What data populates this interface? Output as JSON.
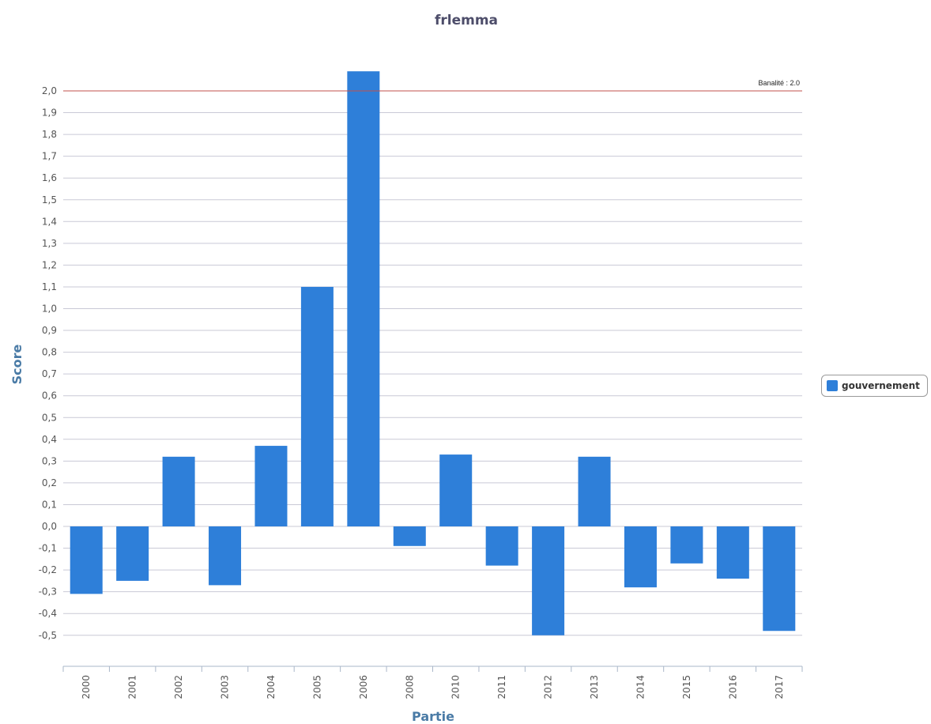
{
  "chart_data": {
    "type": "bar",
    "title": "frlemma",
    "xlabel": "Partie",
    "ylabel": "Score",
    "categories": [
      "2000",
      "2001",
      "2002",
      "2003",
      "2004",
      "2005",
      "2006",
      "2008",
      "2010",
      "2011",
      "2012",
      "2013",
      "2014",
      "2015",
      "2016",
      "2017"
    ],
    "series": [
      {
        "name": "gouvernement",
        "color": "#2e7fd9",
        "values": [
          -0.31,
          -0.25,
          0.32,
          -0.27,
          0.37,
          1.1,
          2.09,
          -0.09,
          0.33,
          -0.18,
          -0.5,
          0.32,
          -0.28,
          -0.17,
          -0.24,
          -0.48
        ]
      }
    ],
    "ylim": [
      -0.64,
      2.2
    ],
    "yticks": [
      "-0,5",
      "-0,4",
      "-0,3",
      "-0,2",
      "-0,1",
      "0,0",
      "0,1",
      "0,2",
      "0,3",
      "0,4",
      "0,5",
      "0,6",
      "0,7",
      "0,8",
      "0,9",
      "1,0",
      "1,1",
      "1,2",
      "1,3",
      "1,4",
      "1,5",
      "1,6",
      "1,7",
      "1,8",
      "1,9",
      "2,0"
    ],
    "ytick_values": [
      -0.5,
      -0.4,
      -0.3,
      -0.2,
      -0.1,
      0.0,
      0.1,
      0.2,
      0.3,
      0.4,
      0.5,
      0.6,
      0.7,
      0.8,
      0.9,
      1.0,
      1.1,
      1.2,
      1.3,
      1.4,
      1.5,
      1.6,
      1.7,
      1.8,
      1.9,
      2.0
    ],
    "reference_line": {
      "value": 2.0,
      "label": "Banalité : 2.0",
      "color": "#c0504d"
    },
    "grid": true,
    "legend_position": "right"
  }
}
